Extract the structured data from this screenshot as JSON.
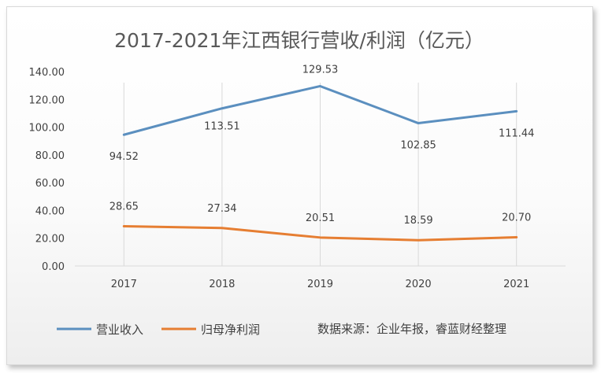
{
  "chart_data": {
    "type": "line",
    "title": "2017-2021年江西银行营收/利润（亿元）",
    "categories": [
      "2017",
      "2018",
      "2019",
      "2020",
      "2021"
    ],
    "series": [
      {
        "name": "营业收入",
        "values": [
          94.52,
          113.51,
          129.53,
          102.85,
          111.44
        ],
        "color": "#5b8fbf"
      },
      {
        "name": "归母净利润",
        "values": [
          28.65,
          27.34,
          20.51,
          18.59,
          20.7
        ],
        "color": "#e67e32"
      }
    ],
    "ylim": [
      0,
      140
    ],
    "yticks": [
      "0.00",
      "20.00",
      "40.00",
      "60.00",
      "80.00",
      "100.00",
      "120.00",
      "140.00"
    ],
    "grid": "vertical",
    "legend_position": "bottom-left"
  },
  "source_note": "数据来源：企业年报，睿蓝财经整理"
}
